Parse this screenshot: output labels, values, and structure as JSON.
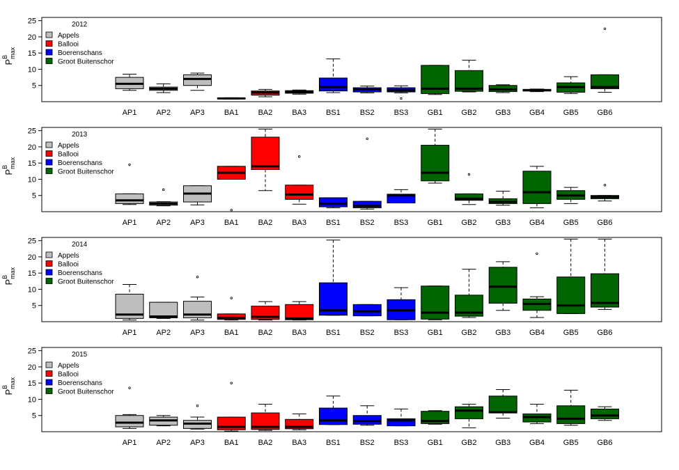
{
  "chart_data": [
    {
      "type": "boxplot",
      "title": "2012",
      "ylabel": {
        "main": "P",
        "sup": "B",
        "sub": "max"
      },
      "ylim": [
        0,
        26
      ],
      "yticks": [
        5,
        10,
        15,
        20,
        25
      ],
      "categories": [
        "AP1",
        "AP2",
        "AP3",
        "BA1",
        "BA2",
        "BA3",
        "BS1",
        "BS2",
        "BS3",
        "GB1",
        "GB2",
        "GB3",
        "GB4",
        "GB5",
        "GB6"
      ],
      "legend": {
        "position": "top-left",
        "entries": [
          {
            "label": "Appels",
            "color": "#bebebe"
          },
          {
            "label": "Ballooi",
            "color": "#ff0000"
          },
          {
            "label": "Boerenschans",
            "color": "#0000ff"
          },
          {
            "label": "Groot Buitenschor",
            "color": "#006400"
          }
        ]
      },
      "boxes": [
        {
          "min": 3.5,
          "q1": 4.0,
          "median": 5.5,
          "q3": 7.5,
          "max": 8.5,
          "outliers": [],
          "color": "#bebebe"
        },
        {
          "min": 2.8,
          "q1": 3.5,
          "median": 4.0,
          "q3": 4.5,
          "max": 5.5,
          "outliers": [],
          "color": "#bebebe"
        },
        {
          "min": 3.5,
          "q1": 5.0,
          "median": 7.0,
          "q3": 8.3,
          "max": 8.8,
          "outliers": [],
          "color": "#bebebe"
        },
        {
          "min": 0.8,
          "q1": 0.9,
          "median": 1.0,
          "q3": 1.1,
          "max": 1.2,
          "outliers": [],
          "color": "#ff0000"
        },
        {
          "min": 1.5,
          "q1": 2.0,
          "median": 2.8,
          "q3": 3.3,
          "max": 3.8,
          "outliers": [],
          "color": "#ff0000"
        },
        {
          "min": 2.3,
          "q1": 2.6,
          "median": 3.0,
          "q3": 3.4,
          "max": 3.6,
          "outliers": [],
          "color": "#ff0000"
        },
        {
          "min": 2.8,
          "q1": 3.3,
          "median": 4.5,
          "q3": 7.3,
          "max": 13.2,
          "outliers": [],
          "color": "#0000ff"
        },
        {
          "min": 2.7,
          "q1": 3.0,
          "median": 3.8,
          "q3": 4.3,
          "max": 4.8,
          "outliers": [],
          "color": "#0000ff"
        },
        {
          "min": 2.7,
          "q1": 3.0,
          "median": 3.5,
          "q3": 4.3,
          "max": 4.9,
          "outliers": [
            1.0
          ],
          "color": "#0000ff"
        },
        {
          "min": 2.2,
          "q1": 2.5,
          "median": 4.0,
          "q3": 11.2,
          "max": 11.2,
          "outliers": [],
          "color": "#006400"
        },
        {
          "min": 3.0,
          "q1": 3.2,
          "median": 4.0,
          "q3": 9.6,
          "max": 12.8,
          "outliers": [],
          "color": "#006400"
        },
        {
          "min": 2.8,
          "q1": 3.1,
          "median": 3.8,
          "q3": 5.0,
          "max": 5.2,
          "outliers": [],
          "color": "#006400"
        },
        {
          "min": 3.1,
          "q1": 3.3,
          "median": 3.5,
          "q3": 3.8,
          "max": 3.9,
          "outliers": [],
          "color": "#006400"
        },
        {
          "min": 2.5,
          "q1": 2.9,
          "median": 4.5,
          "q3": 5.8,
          "max": 7.7,
          "outliers": [],
          "color": "#006400"
        },
        {
          "min": 2.9,
          "q1": 4.0,
          "median": 4.5,
          "q3": 8.3,
          "max": 8.3,
          "outliers": [
            22.5
          ],
          "color": "#006400"
        }
      ]
    },
    {
      "type": "boxplot",
      "title": "2013",
      "ylabel": {
        "main": "P",
        "sup": "B",
        "sub": "max"
      },
      "ylim": [
        0,
        26
      ],
      "yticks": [
        5,
        10,
        15,
        20,
        25
      ],
      "categories": [
        "AP1",
        "AP2",
        "AP3",
        "BA1",
        "BA2",
        "BA3",
        "BS1",
        "BS2",
        "BS3",
        "GB1",
        "GB2",
        "GB3",
        "GB4",
        "GB5",
        "GB6"
      ],
      "legend": {
        "position": "top-left",
        "entries": [
          {
            "label": "Appels",
            "color": "#bebebe"
          },
          {
            "label": "Ballooi",
            "color": "#ff0000"
          },
          {
            "label": "Boerenschans",
            "color": "#0000ff"
          },
          {
            "label": "Groot Buitenschor",
            "color": "#006400"
          }
        ]
      },
      "boxes": [
        {
          "min": 2.2,
          "q1": 2.5,
          "median": 3.5,
          "q3": 5.5,
          "max": 5.5,
          "outliers": [
            14.5
          ],
          "color": "#bebebe"
        },
        {
          "min": 1.8,
          "q1": 2.0,
          "median": 2.5,
          "q3": 3.0,
          "max": 3.1,
          "outliers": [
            6.8
          ],
          "color": "#bebebe"
        },
        {
          "min": 2.1,
          "q1": 3.0,
          "median": 5.6,
          "q3": 8.0,
          "max": 8.0,
          "outliers": [],
          "color": "#bebebe"
        },
        {
          "min": 10.0,
          "q1": 10.0,
          "median": 12.0,
          "q3": 14.0,
          "max": 14.0,
          "outliers": [
            0.5
          ],
          "color": "#ff0000"
        },
        {
          "min": 6.5,
          "q1": 13.0,
          "median": 14.0,
          "q3": 23.0,
          "max": 25.5,
          "outliers": [],
          "color": "#ff0000"
        },
        {
          "min": 2.3,
          "q1": 3.8,
          "median": 5.3,
          "q3": 8.2,
          "max": 8.2,
          "outliers": [
            17.0
          ],
          "color": "#ff0000"
        },
        {
          "min": 1.2,
          "q1": 1.5,
          "median": 2.5,
          "q3": 4.3,
          "max": 4.3,
          "outliers": [],
          "color": "#0000ff"
        },
        {
          "min": 0.8,
          "q1": 1.2,
          "median": 1.8,
          "q3": 3.2,
          "max": 3.2,
          "outliers": [
            22.5
          ],
          "color": "#0000ff"
        },
        {
          "min": 2.7,
          "q1": 2.7,
          "median": 5.0,
          "q3": 5.4,
          "max": 6.8,
          "outliers": [],
          "color": "#0000ff"
        },
        {
          "min": 8.8,
          "q1": 9.5,
          "median": 12.0,
          "q3": 20.5,
          "max": 25.5,
          "outliers": [],
          "color": "#006400"
        },
        {
          "min": 2.2,
          "q1": 3.5,
          "median": 4.0,
          "q3": 5.5,
          "max": 5.5,
          "outliers": [
            11.5
          ],
          "color": "#006400"
        },
        {
          "min": 2.0,
          "q1": 2.5,
          "median": 3.0,
          "q3": 4.0,
          "max": 6.3,
          "outliers": [],
          "color": "#006400"
        },
        {
          "min": 1.2,
          "q1": 2.5,
          "median": 6.0,
          "q3": 12.5,
          "max": 14.0,
          "outliers": [],
          "color": "#006400"
        },
        {
          "min": 2.5,
          "q1": 3.8,
          "median": 5.0,
          "q3": 6.5,
          "max": 7.5,
          "outliers": [],
          "color": "#006400"
        },
        {
          "min": 3.3,
          "q1": 4.0,
          "median": 4.5,
          "q3": 5.0,
          "max": 5.0,
          "outliers": [
            8.2
          ],
          "color": "#006400"
        }
      ]
    },
    {
      "type": "boxplot",
      "title": "2014",
      "ylabel": {
        "main": "P",
        "sup": "B",
        "sub": "max"
      },
      "ylim": [
        0,
        26
      ],
      "yticks": [
        5,
        10,
        15,
        20,
        25
      ],
      "categories": [
        "AP1",
        "AP2",
        "AP3",
        "BA1",
        "BA2",
        "BA3",
        "BS1",
        "BS2",
        "BS3",
        "GB1",
        "GB2",
        "GB3",
        "GB4",
        "GB5",
        "GB6"
      ],
      "legend": {
        "position": "top-left",
        "entries": [
          {
            "label": "Appels",
            "color": "#bebebe"
          },
          {
            "label": "Ballooi",
            "color": "#ff0000"
          },
          {
            "label": "Boerenschans",
            "color": "#0000ff"
          },
          {
            "label": "Groot Buitenschor",
            "color": "#006400"
          }
        ]
      },
      "boxes": [
        {
          "min": 0.5,
          "q1": 1.0,
          "median": 2.2,
          "q3": 8.5,
          "max": 11.5,
          "outliers": [],
          "color": "#bebebe"
        },
        {
          "min": 1.0,
          "q1": 1.2,
          "median": 1.6,
          "q3": 6.0,
          "max": 6.0,
          "outliers": [],
          "color": "#bebebe"
        },
        {
          "min": 0.5,
          "q1": 1.2,
          "median": 2.2,
          "q3": 6.3,
          "max": 7.6,
          "outliers": [
            13.8
          ],
          "color": "#bebebe"
        },
        {
          "min": 0.5,
          "q1": 0.7,
          "median": 1.2,
          "q3": 2.4,
          "max": 2.4,
          "outliers": [
            7.3
          ],
          "color": "#ff0000"
        },
        {
          "min": 0.5,
          "q1": 0.7,
          "median": 1.5,
          "q3": 4.8,
          "max": 6.2,
          "outliers": [],
          "color": "#ff0000"
        },
        {
          "min": 0.5,
          "q1": 0.6,
          "median": 1.0,
          "q3": 5.3,
          "max": 6.2,
          "outliers": [],
          "color": "#ff0000"
        },
        {
          "min": 2.0,
          "q1": 2.0,
          "median": 3.5,
          "q3": 12.0,
          "max": 25.2,
          "outliers": [],
          "color": "#0000ff"
        },
        {
          "min": 1.8,
          "q1": 1.8,
          "median": 3.2,
          "q3": 5.3,
          "max": 5.3,
          "outliers": [],
          "color": "#0000ff"
        },
        {
          "min": 0.6,
          "q1": 0.6,
          "median": 3.5,
          "q3": 6.8,
          "max": 10.5,
          "outliers": [],
          "color": "#0000ff"
        },
        {
          "min": 0.6,
          "q1": 0.8,
          "median": 2.8,
          "q3": 11.0,
          "max": 11.0,
          "outliers": [],
          "color": "#006400"
        },
        {
          "min": 1.3,
          "q1": 1.7,
          "median": 2.8,
          "q3": 8.2,
          "max": 16.2,
          "outliers": [],
          "color": "#006400"
        },
        {
          "min": 3.5,
          "q1": 5.7,
          "median": 10.8,
          "q3": 16.8,
          "max": 18.5,
          "outliers": [],
          "color": "#006400"
        },
        {
          "min": 1.3,
          "q1": 3.5,
          "median": 5.5,
          "q3": 7.0,
          "max": 7.7,
          "outliers": [
            21.0
          ],
          "color": "#006400"
        },
        {
          "min": 2.5,
          "q1": 2.5,
          "median": 5.0,
          "q3": 13.8,
          "max": 25.5,
          "outliers": [],
          "color": "#006400"
        },
        {
          "min": 3.8,
          "q1": 4.5,
          "median": 5.8,
          "q3": 14.8,
          "max": 25.5,
          "outliers": [],
          "color": "#006400"
        }
      ]
    },
    {
      "type": "boxplot",
      "title": "2015",
      "ylabel": {
        "main": "P",
        "sup": "B",
        "sub": "max"
      },
      "ylim": [
        0,
        26
      ],
      "yticks": [
        5,
        10,
        15,
        20,
        25
      ],
      "categories": [
        "AP1",
        "AP2",
        "AP3",
        "BA1",
        "BA2",
        "BA3",
        "BS1",
        "BS2",
        "BS3",
        "GB1",
        "GB2",
        "GB3",
        "GB4",
        "GB5",
        "GB6"
      ],
      "legend": {
        "position": "top-left",
        "entries": [
          {
            "label": "Appels",
            "color": "#bebebe"
          },
          {
            "label": "Ballooi",
            "color": "#ff0000"
          },
          {
            "label": "Boerenschans",
            "color": "#0000ff"
          },
          {
            "label": "Groot Buitenschor",
            "color": "#006400"
          }
        ]
      },
      "boxes": [
        {
          "min": 1.0,
          "q1": 1.5,
          "median": 2.8,
          "q3": 5.0,
          "max": 5.3,
          "outliers": [
            13.5
          ],
          "color": "#bebebe"
        },
        {
          "min": 1.8,
          "q1": 2.0,
          "median": 3.5,
          "q3": 4.5,
          "max": 5.0,
          "outliers": [],
          "color": "#bebebe"
        },
        {
          "min": 0.8,
          "q1": 1.0,
          "median": 2.5,
          "q3": 3.5,
          "max": 4.5,
          "outliers": [
            8.0
          ],
          "color": "#bebebe"
        },
        {
          "min": 0.2,
          "q1": 0.6,
          "median": 1.5,
          "q3": 4.5,
          "max": 4.5,
          "outliers": [
            15.0
          ],
          "color": "#ff0000"
        },
        {
          "min": 0.4,
          "q1": 0.7,
          "median": 1.5,
          "q3": 5.8,
          "max": 8.5,
          "outliers": [],
          "color": "#ff0000"
        },
        {
          "min": 0.6,
          "q1": 0.9,
          "median": 1.5,
          "q3": 3.8,
          "max": 5.5,
          "outliers": [],
          "color": "#ff0000"
        },
        {
          "min": 2.2,
          "q1": 2.2,
          "median": 3.5,
          "q3": 7.3,
          "max": 11.0,
          "outliers": [],
          "color": "#0000ff"
        },
        {
          "min": 2.0,
          "q1": 2.3,
          "median": 3.3,
          "q3": 5.0,
          "max": 8.0,
          "outliers": [],
          "color": "#0000ff"
        },
        {
          "min": 1.8,
          "q1": 1.8,
          "median": 3.5,
          "q3": 4.0,
          "max": 7.0,
          "outliers": [],
          "color": "#0000ff"
        },
        {
          "min": 2.3,
          "q1": 2.5,
          "median": 3.3,
          "q3": 6.3,
          "max": 6.5,
          "outliers": [],
          "color": "#006400"
        },
        {
          "min": 1.2,
          "q1": 4.0,
          "median": 6.5,
          "q3": 7.7,
          "max": 8.5,
          "outliers": [],
          "color": "#006400"
        },
        {
          "min": 4.2,
          "q1": 5.8,
          "median": 6.0,
          "q3": 11.0,
          "max": 13.0,
          "outliers": [],
          "color": "#006400"
        },
        {
          "min": 2.5,
          "q1": 3.0,
          "median": 4.5,
          "q3": 5.5,
          "max": 8.5,
          "outliers": [],
          "color": "#006400"
        },
        {
          "min": 2.0,
          "q1": 2.5,
          "median": 4.0,
          "q3": 8.0,
          "max": 12.8,
          "outliers": [],
          "color": "#006400"
        },
        {
          "min": 3.5,
          "q1": 4.0,
          "median": 5.0,
          "q3": 7.0,
          "max": 7.7,
          "outliers": [],
          "color": "#006400"
        }
      ]
    }
  ]
}
